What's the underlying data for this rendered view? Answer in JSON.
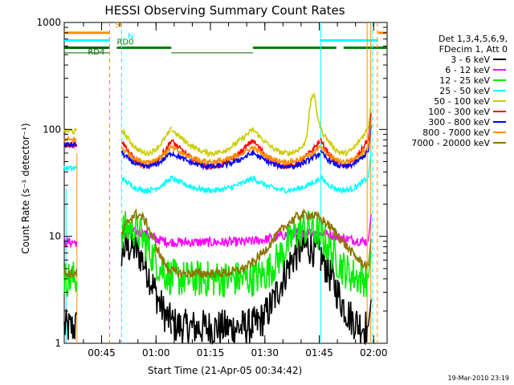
{
  "chart_data": {
    "type": "line",
    "title": "HESSI Observing Summary Count Rates",
    "xlabel": "Start Time (21-Apr-05 00:34:42)",
    "ylabel": "Count Rate (s⁻¹ detector⁻¹)",
    "y_scale": "log",
    "ylim": [
      1,
      1000
    ],
    "xlim_minutes": [
      0,
      89
    ],
    "x_tick_labels": [
      "00:45",
      "01:00",
      "01:15",
      "01:30",
      "01:45",
      "02:00"
    ],
    "x_tick_minutes": [
      10.3,
      25.3,
      40.3,
      55.3,
      70.3,
      85.3
    ],
    "y_tick_labels": [
      "1",
      "10",
      "100",
      "1000"
    ],
    "y_tick_values": [
      1,
      10,
      100,
      1000
    ],
    "legend_header": [
      "Det 1,3,4,5,6,9,",
      "FDecim 1, Att 0"
    ],
    "series": [
      {
        "name": "3 - 6 keV",
        "color": "#000000",
        "kind": "lowthermal",
        "base": 1.4,
        "peak": 8.0
      },
      {
        "name": "6 - 12 keV",
        "color": "#ff00ff",
        "kind": "thermal",
        "base": 8.8,
        "peak": 11.0
      },
      {
        "name": "12 - 25 keV",
        "color": "#00ee00",
        "kind": "lowthermal",
        "base": 4.0,
        "peak": 12.0
      },
      {
        "name": "25 - 50 keV",
        "color": "#00ffff",
        "kind": "bowl",
        "base": 27,
        "peak": 45
      },
      {
        "name": "50 - 100 keV",
        "color": "#cccc00",
        "kind": "bowl",
        "base": 60,
        "peak": 150
      },
      {
        "name": "100 - 300 keV",
        "color": "#ff0000",
        "kind": "bowl",
        "base": 45,
        "peak": 120
      },
      {
        "name": "300 - 800 keV",
        "color": "#0000ff",
        "kind": "bowl",
        "base": 45,
        "peak": 80
      },
      {
        "name": "800 - 7000 keV",
        "color": "#ff8c00",
        "kind": "bowl",
        "base": 50,
        "peak": 90
      },
      {
        "name": "7000 - 20000 keV",
        "color": "#8b7500",
        "kind": "thermal",
        "base": 4.5,
        "peak": 16
      }
    ],
    "annotations": [
      {
        "text": "SI",
        "color": "#ff8c00"
      },
      {
        "text": "N",
        "color": "#00ffff"
      },
      {
        "text": "RD0",
        "color": "#008000"
      },
      {
        "text": "RD4",
        "color": "#006400"
      }
    ],
    "segments": {
      "orange_top": [
        [
          0,
          12.5
        ],
        [
          86.5,
          89
        ]
      ],
      "cyan_mid": [
        [
          0,
          12.5
        ],
        [
          70.5,
          86.5
        ]
      ],
      "green_rd0": [
        [
          14.5,
          29.5
        ],
        [
          52,
          75
        ],
        [
          77,
          89
        ]
      ],
      "green_rd4": [
        [
          0,
          12.5
        ]
      ]
    },
    "vlines": [
      {
        "x": 12.5,
        "color": "#ff8c00",
        "dash": true
      },
      {
        "x": 15.8,
        "color": "#00ffff",
        "dash": true
      },
      {
        "x": 70.7,
        "color": "#00ffff",
        "dash": false
      },
      {
        "x": 83.5,
        "color": "#ff8c00",
        "dash": false
      },
      {
        "x": 84.5,
        "color": "#ff8c00",
        "dash": false
      },
      {
        "x": 85.0,
        "color": "#00ffff",
        "dash": true
      },
      {
        "x": 86.3,
        "color": "#ff8c00",
        "dash": true
      }
    ],
    "timestamp": "19-Mar-2010 23:19"
  }
}
